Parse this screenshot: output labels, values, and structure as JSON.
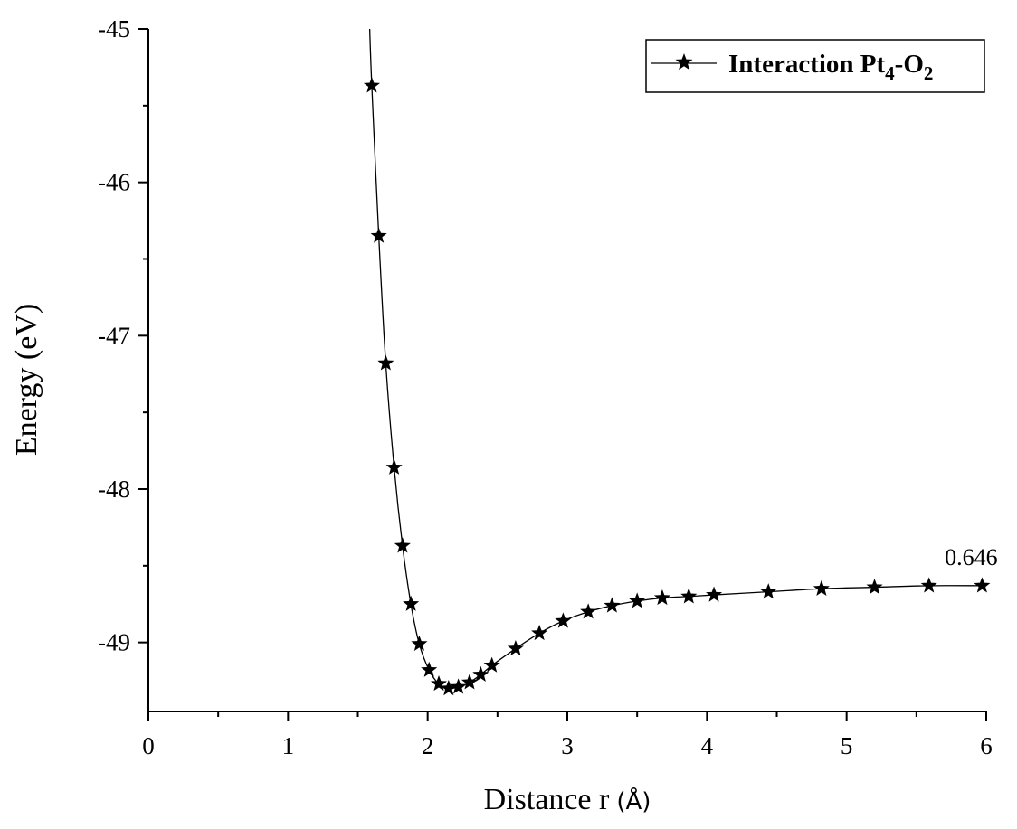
{
  "chart_data": {
    "type": "line",
    "xlabel": "Distance r",
    "xlabel_unit": "(Å)",
    "ylabel": "Energy (eV)",
    "xlim": [
      0,
      6
    ],
    "ylim": [
      -49.45,
      -45
    ],
    "x_ticks": [
      0,
      1,
      2,
      3,
      4,
      5,
      6
    ],
    "x_minor_ticks": [
      0.5,
      1.5,
      2.5,
      3.5,
      4.5,
      5.5
    ],
    "y_ticks": [
      -49,
      -48,
      -47,
      -46,
      -45
    ],
    "y_minor_ticks": [
      -48.5,
      -47.5,
      -46.5,
      -45.5
    ],
    "grid": false,
    "legend": {
      "placement": "top-right",
      "prefix": "Interaction Pt",
      "sub1": "4",
      "mid": "-O",
      "sub2": "2"
    },
    "annotation": {
      "text": "0.646",
      "x": 5.97,
      "y": -48.625
    },
    "series": [
      {
        "marker": "star",
        "color": "#000000",
        "curve_top": {
          "x": 1.585,
          "y": -45.0
        },
        "points": [
          {
            "x": 1.6,
            "y": -45.37
          },
          {
            "x": 1.65,
            "y": -46.35
          },
          {
            "x": 1.7,
            "y": -47.18
          },
          {
            "x": 1.76,
            "y": -47.86
          },
          {
            "x": 1.82,
            "y": -48.37
          },
          {
            "x": 1.88,
            "y": -48.75
          },
          {
            "x": 1.94,
            "y": -49.01
          },
          {
            "x": 2.01,
            "y": -49.18
          },
          {
            "x": 2.08,
            "y": -49.27
          },
          {
            "x": 2.15,
            "y": -49.3
          },
          {
            "x": 2.22,
            "y": -49.29
          },
          {
            "x": 2.3,
            "y": -49.26
          },
          {
            "x": 2.38,
            "y": -49.21
          },
          {
            "x": 2.46,
            "y": -49.15
          },
          {
            "x": 2.63,
            "y": -49.04
          },
          {
            "x": 2.8,
            "y": -48.94
          },
          {
            "x": 2.97,
            "y": -48.86
          },
          {
            "x": 3.15,
            "y": -48.8
          },
          {
            "x": 3.32,
            "y": -48.76
          },
          {
            "x": 3.5,
            "y": -48.73
          },
          {
            "x": 3.68,
            "y": -48.71
          },
          {
            "x": 3.87,
            "y": -48.7
          },
          {
            "x": 4.05,
            "y": -48.69
          },
          {
            "x": 4.44,
            "y": -48.67
          },
          {
            "x": 4.82,
            "y": -48.65
          },
          {
            "x": 5.2,
            "y": -48.64
          },
          {
            "x": 5.59,
            "y": -48.63
          },
          {
            "x": 5.97,
            "y": -48.63
          }
        ]
      }
    ]
  }
}
